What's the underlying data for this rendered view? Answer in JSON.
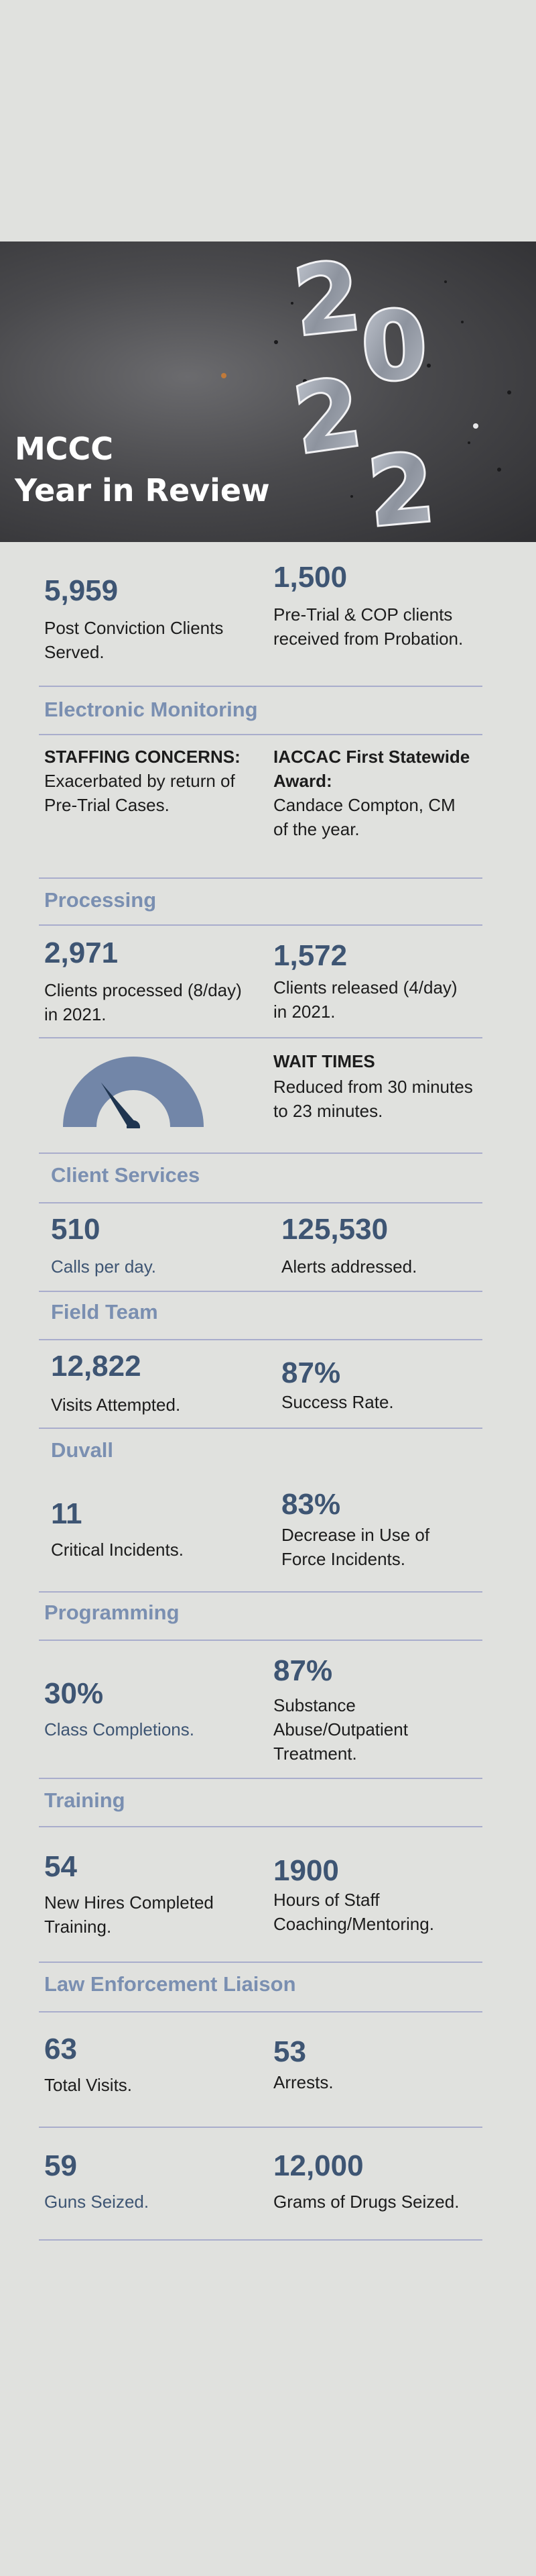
{
  "hero": {
    "title_line1": "MCCC",
    "title_line2": "Year in Review",
    "year_digits": [
      "2",
      "0",
      "2",
      "2"
    ]
  },
  "summary": {
    "post_conviction": {
      "value": "5,959",
      "label": "Post Conviction Clients Served."
    },
    "pretrial": {
      "value": "1,500",
      "label": "Pre-Trial & COP clients received from Probation."
    }
  },
  "electronic_monitoring": {
    "heading": "Electronic Monitoring",
    "staffing_title": "STAFFING CONCERNS:",
    "staffing_text": "Exacerbated by return of Pre-Trial Cases.",
    "award_title": "IACCAC First Statewide Award:",
    "award_text": "Candace Compton, CM of the year."
  },
  "processing": {
    "heading": "Processing",
    "processed": {
      "value": "2,971",
      "label": "Clients processed (8/day) in 2021."
    },
    "released": {
      "value": "1,572",
      "label": "Clients released (4/day) in 2021."
    },
    "wait_title": "WAIT TIMES",
    "wait_text": "Reduced from 30 minutes to 23 minutes.",
    "gauge_icon": "speedometer-gauge-icon",
    "gauge_level": 0.3
  },
  "client_services": {
    "heading": "Client Services",
    "calls": {
      "value": "510",
      "label": "Calls per day."
    },
    "alerts": {
      "value": "125,530",
      "label": "Alerts addressed."
    }
  },
  "field_team": {
    "heading": "Field Team",
    "visits": {
      "value": "12,822",
      "label": "Visits Attempted."
    },
    "success": {
      "value": "87%",
      "label": "Success Rate."
    }
  },
  "duvall": {
    "heading": "Duvall",
    "incidents": {
      "value": "11",
      "label": "Critical Incidents."
    },
    "force": {
      "value": "83%",
      "label": "Decrease in Use of Force Incidents."
    }
  },
  "programming": {
    "heading": "Programming",
    "classes": {
      "value": "30%",
      "label": "Class Completions."
    },
    "substance": {
      "value": "87%",
      "label": "Substance Abuse/Outpatient Treatment."
    }
  },
  "training": {
    "heading": "Training",
    "hires": {
      "value": "54",
      "label": "New Hires Completed Training."
    },
    "coaching": {
      "value": "1900",
      "label": "Hours of Staff Coaching/Mentoring."
    }
  },
  "law_enforcement": {
    "heading": "Law Enforcement Liaison",
    "visits": {
      "value": "63",
      "label": "Total Visits."
    },
    "arrests": {
      "value": "53",
      "label": "Arrests."
    },
    "guns": {
      "value": "59",
      "label": "Guns Seized."
    },
    "drugs": {
      "value": "12,000",
      "label": "Grams of Drugs Seized."
    }
  },
  "colors": {
    "accent_blue": "#3e5573",
    "heading_blue": "#7a8fb1",
    "rule": "#a9adcc",
    "gauge_fill": "#7286a8",
    "needle": "#1f3550",
    "background": "#e0e1de"
  }
}
